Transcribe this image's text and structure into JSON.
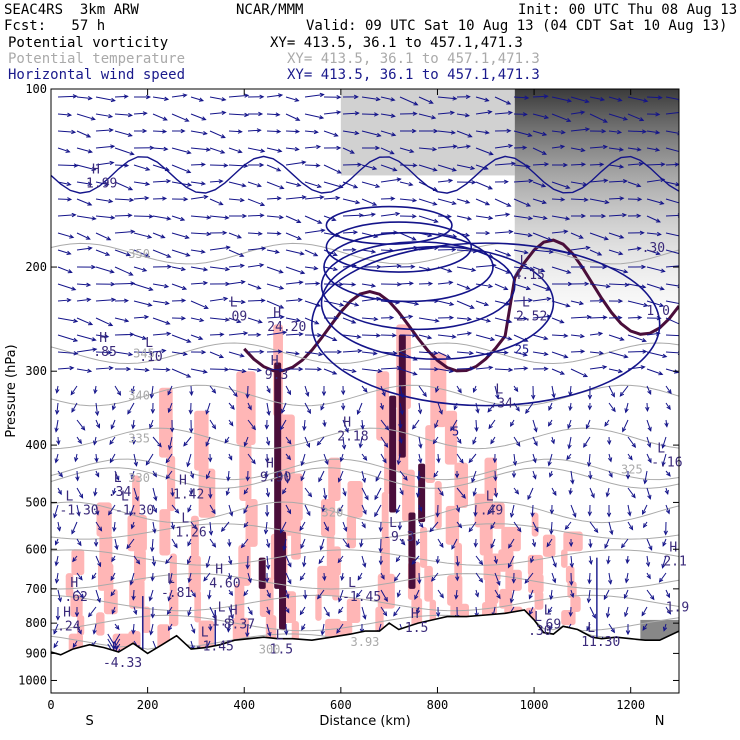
{
  "header": {
    "title": "SEAC4RS  3km ARW",
    "org": "NCAR/MMM",
    "init": "Init: 00 UTC Thu 08 Aug 13",
    "fcst": "Fcst:   57 h",
    "valid": "Valid: 09 UTC Sat 10 Aug 13 (04 CDT Sat 10 Aug 13)",
    "fields": [
      {
        "name": "Potential vorticity",
        "xy": "XY= 413.5, 36.1 to 457.1,471.3",
        "color": "#000000"
      },
      {
        "name": "Potential temperature",
        "xy": "XY= 413.5, 36.1 to 457.1,471.3",
        "color": "#aaaaaa"
      },
      {
        "name": "Horizontal wind speed",
        "xy": "XY= 413.5, 36.1 to 457.1,471.3",
        "color": "#1a1a8c"
      }
    ]
  },
  "chart_data": {
    "type": "cross-section",
    "title": "",
    "xlabel": "Distance (km)",
    "ylabel": "Pressure (hPa)",
    "xlim": [
      0,
      1300
    ],
    "ylim": [
      100,
      1050
    ],
    "y_scale": "log",
    "x_ticks": [
      0,
      200,
      400,
      600,
      800,
      1000,
      1200
    ],
    "y_ticks": [
      100,
      200,
      300,
      400,
      500,
      600,
      700,
      800,
      900,
      1000
    ],
    "x_end_labels": {
      "left": "S",
      "right": "N"
    },
    "colors": {
      "pv_fill_light": "#ffb6b6",
      "pv_fill_strong": "#4a0e3a",
      "wind": "#14148a",
      "theta": "#aaaaaa",
      "terrain": "#000000",
      "dark_shade": "#555555"
    },
    "terrain": {
      "x": [
        0,
        20,
        45,
        80,
        110,
        140,
        170,
        200,
        230,
        260,
        290,
        320,
        350,
        380,
        410,
        440,
        470,
        500,
        540,
        580,
        620,
        650,
        680,
        700,
        720,
        740,
        760,
        790,
        820,
        860,
        900,
        940,
        980,
        1000,
        1020,
        1040,
        1060,
        1090,
        1120,
        1140,
        1170,
        1200,
        1230,
        1260,
        1300
      ],
      "p": [
        895,
        905,
        885,
        870,
        880,
        895,
        865,
        900,
        870,
        840,
        885,
        880,
        870,
        855,
        850,
        845,
        850,
        850,
        855,
        845,
        835,
        825,
        825,
        800,
        820,
        810,
        800,
        790,
        780,
        780,
        775,
        770,
        760,
        790,
        830,
        835,
        810,
        820,
        845,
        850,
        845,
        850,
        855,
        855,
        825
      ]
    },
    "theta_contours": [
      {
        "label": "350",
        "p": 190,
        "label_x": 160
      },
      {
        "label": "345",
        "p": 280,
        "label_x": 170
      },
      {
        "label": "340",
        "p": 330,
        "label_x": 160
      },
      {
        "label": "335",
        "p": 390,
        "label_x": 160
      },
      {
        "label": "330",
        "p": 455,
        "label_x": 160
      },
      {
        "label": "325",
        "p": 440,
        "label_x": 1180
      },
      {
        "label": "320",
        "p": 520,
        "label_x": 560
      }
    ],
    "theta_extra_labels": [
      {
        "text": "300",
        "x": 430,
        "p": 900
      },
      {
        "text": "3.93",
        "x": 620,
        "p": 875
      }
    ],
    "pv_extrema": [
      {
        "letter": "H",
        "value": "1.99",
        "x": 85,
        "p": 140
      },
      {
        "letter": "H",
        "value": ".85",
        "x": 100,
        "p": 270
      },
      {
        "letter": "L",
        "value": ".10",
        "x": 195,
        "p": 275
      },
      {
        "letter": "L",
        "value": ".34",
        "x": 130,
        "p": 465
      },
      {
        "letter": "L",
        "value": "-1.30",
        "x": 145,
        "p": 500
      },
      {
        "letter": "H",
        "value": "1.42",
        "x": 265,
        "p": 470
      },
      {
        "letter": "L",
        "value": "1.26",
        "x": 270,
        "p": 545
      },
      {
        "letter": "L",
        "value": ".09",
        "x": 370,
        "p": 235
      },
      {
        "letter": "H",
        "value": "24.20",
        "x": 460,
        "p": 245
      },
      {
        "letter": "H",
        "value": "9.3",
        "x": 455,
        "p": 295
      },
      {
        "letter": "H",
        "value": "9.90",
        "x": 445,
        "p": 440
      },
      {
        "letter": "H",
        "value": "2.18",
        "x": 605,
        "p": 375
      },
      {
        "letter": "L",
        "value": "-9.3",
        "x": 700,
        "p": 555
      },
      {
        "letter": "L",
        "value": "-1.45",
        "x": 615,
        "p": 700
      },
      {
        "letter": "L",
        "value": "-.81",
        "x": 240,
        "p": 690
      },
      {
        "letter": "H",
        "value": "4.60",
        "x": 340,
        "p": 665
      },
      {
        "letter": "H",
        "value": "8.37",
        "x": 370,
        "p": 780
      },
      {
        "letter": "L",
        "value": ".49",
        "x": 900,
        "p": 500
      },
      {
        "letter": "L",
        "value": ".34",
        "x": 920,
        "p": 330
      },
      {
        "letter": "L",
        "value": "4.15",
        "x": 970,
        "p": 200
      },
      {
        "letter": "L",
        "value": "2.52",
        "x": 975,
        "p": 235
      },
      {
        "letter": "L",
        "value": "-.16",
        "x": 1255,
        "p": 415
      },
      {
        "letter": "H",
        "value": "2.1",
        "x": 1280,
        "p": 610
      },
      {
        "letter": "H",
        "value": ".62",
        "x": 40,
        "p": 700
      },
      {
        "letter": "H",
        "value": ".24",
        "x": 25,
        "p": 785
      },
      {
        "letter": "L",
        "value": "-1.30",
        "x": 30,
        "p": 500
      },
      {
        "letter": "L",
        "value": "1.5",
        "x": 345,
        "p": 770
      },
      {
        "letter": "L",
        "value": "-1.45",
        "x": 310,
        "p": 850
      },
      {
        "letter": "L",
        "value": "1.5",
        "x": 465,
        "p": 860
      },
      {
        "letter": "H",
        "value": "1.5",
        "x": 745,
        "p": 790
      },
      {
        "letter": "L",
        "value": ".69",
        "x": 1020,
        "p": 780
      },
      {
        "letter": "L",
        "value": "11.30",
        "x": 1110,
        "p": 835
      },
      {
        "letter": "L",
        "value": ".30",
        "x": 1000,
        "p": 800
      },
      {
        "letter": "",
        "value": "-4.33",
        "x": 120,
        "p": 905
      },
      {
        "letter": "",
        "value": "1.9",
        "x": 1285,
        "p": 730
      },
      {
        "letter": "",
        "value": ".30",
        "x": 1235,
        "p": 180
      },
      {
        "letter": "",
        "value": "1.0",
        "x": 1245,
        "p": 230
      }
    ],
    "wind_speed_labels": [
      {
        "text": "5",
        "x": 830,
        "p": 385
      },
      {
        "text": "25",
        "x": 960,
        "p": 280
      }
    ]
  }
}
